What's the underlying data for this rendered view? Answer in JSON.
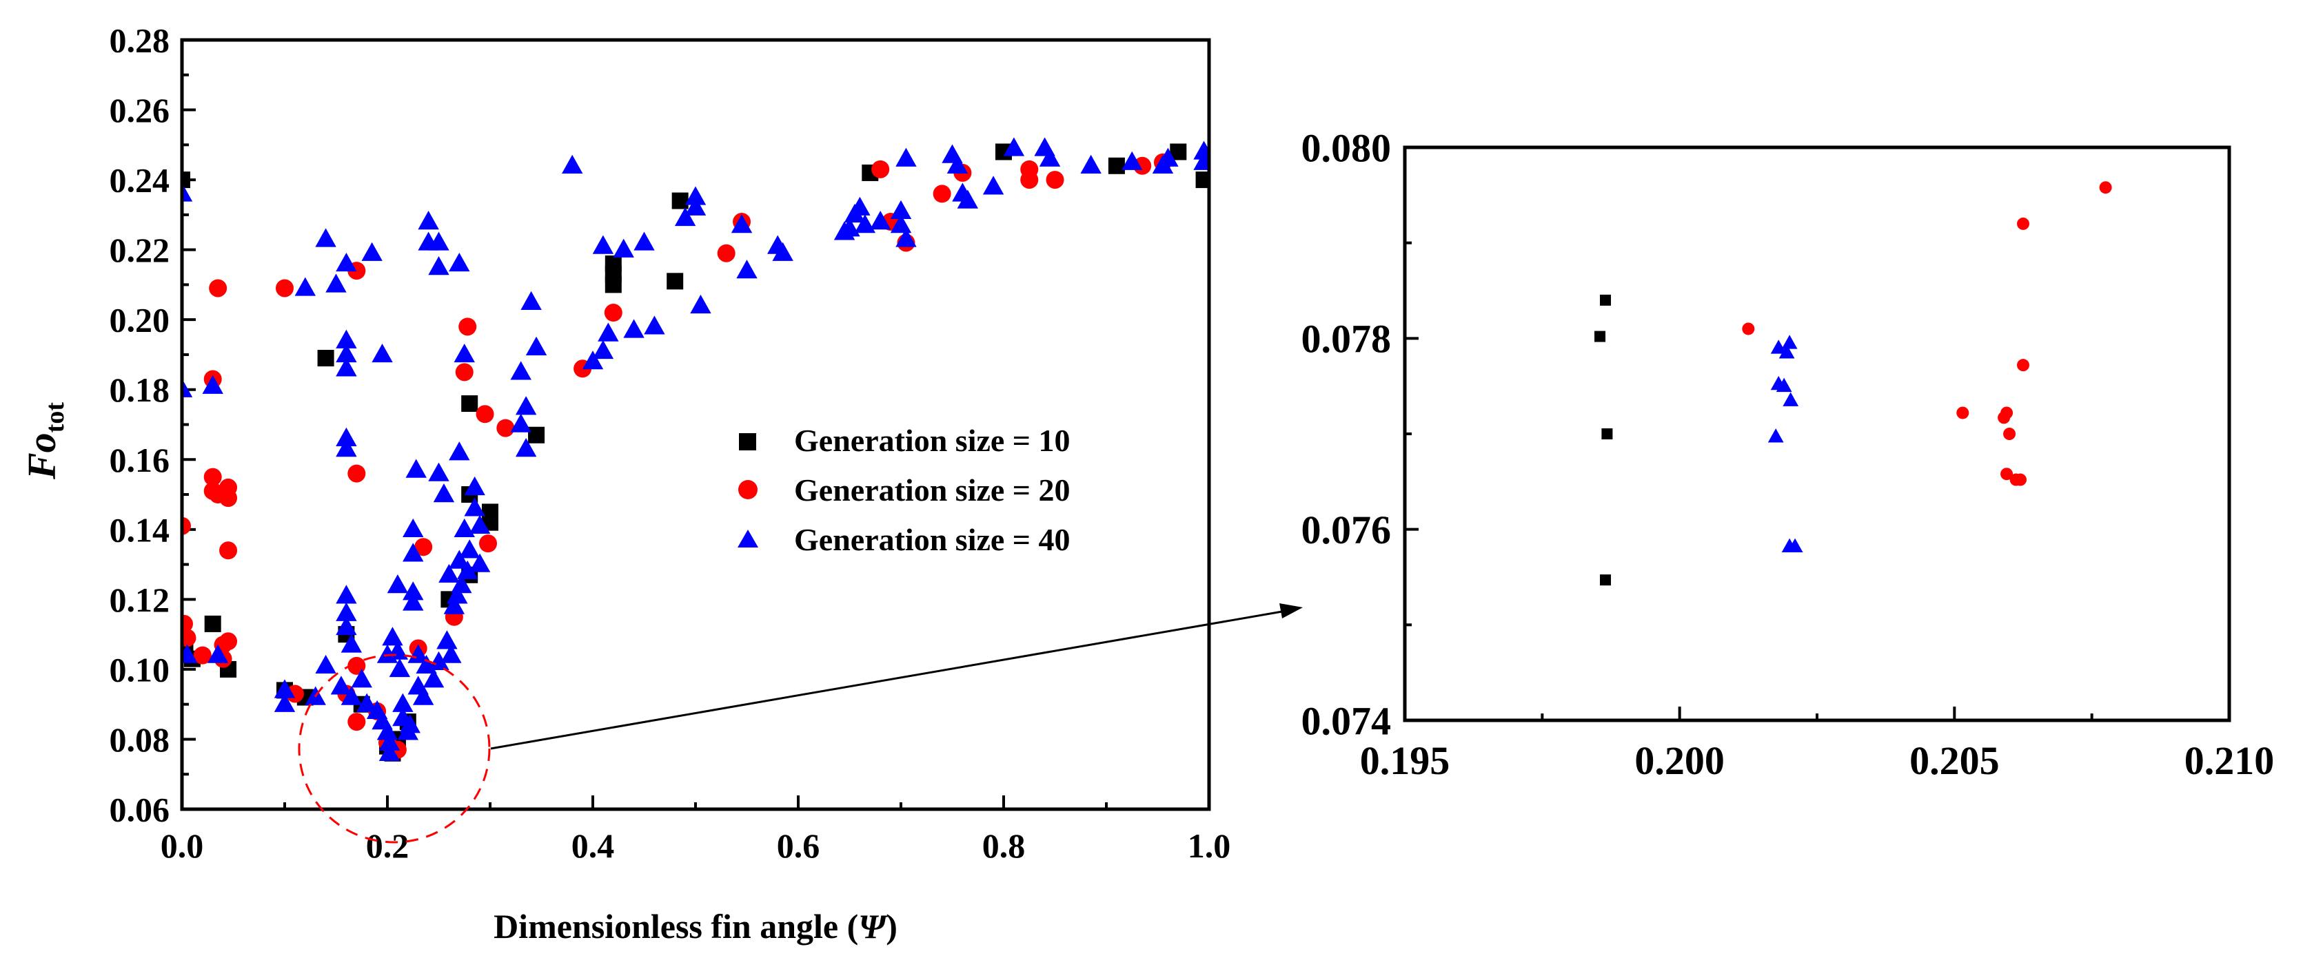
{
  "colors": {
    "series_10": "#000000",
    "series_20": "#ff0000",
    "series_40": "#0000ff",
    "axis": "#000000",
    "highlight_circle": "#ff0000",
    "arrow": "#000000"
  },
  "chart_data": [
    {
      "id": "main",
      "type": "scatter",
      "title": "",
      "xlabel": "Dimensionless fin angle (Ψ)",
      "xlabel_main": "Dimensionless fin angle (",
      "xlabel_symbol": "Ψ",
      "xlabel_close": ")",
      "ylabel": "Fo_tot",
      "ylabel_main": "Fo",
      "ylabel_sub": "tot",
      "xlim": [
        0.0,
        1.0
      ],
      "ylim": [
        0.06,
        0.28
      ],
      "xticks": [
        0.0,
        0.2,
        0.4,
        0.6,
        0.8,
        1.0
      ],
      "xtick_labels": [
        "0.0",
        "0.2",
        "0.4",
        "0.6",
        "0.8",
        "1.0"
      ],
      "yticks": [
        0.06,
        0.08,
        0.1,
        0.12,
        0.14,
        0.16,
        0.18,
        0.2,
        0.22,
        0.24,
        0.26,
        0.28
      ],
      "ytick_labels": [
        "0.06",
        "0.08",
        "0.10",
        "0.12",
        "0.14",
        "0.16",
        "0.18",
        "0.20",
        "0.22",
        "0.24",
        "0.26",
        "0.28"
      ],
      "legend_position": "center-right",
      "series": [
        {
          "name": "Generation size = 10",
          "marker": "square",
          "color": "#000000",
          "points": [
            [
              0.0,
              0.24
            ],
            [
              0.003,
              0.107
            ],
            [
              0.01,
              0.103
            ],
            [
              0.03,
              0.113
            ],
            [
              0.045,
              0.1
            ],
            [
              0.1,
              0.094
            ],
            [
              0.12,
              0.092
            ],
            [
              0.14,
              0.189
            ],
            [
              0.16,
              0.11
            ],
            [
              0.175,
              0.09
            ],
            [
              0.2,
              0.078
            ],
            [
              0.205,
              0.076
            ],
            [
              0.21,
              0.08
            ],
            [
              0.22,
              0.085
            ],
            [
              0.26,
              0.12
            ],
            [
              0.28,
              0.176
            ],
            [
              0.28,
              0.127
            ],
            [
              0.28,
              0.15
            ],
            [
              0.3,
              0.142
            ],
            [
              0.3,
              0.145
            ],
            [
              0.345,
              0.167
            ],
            [
              0.42,
              0.216
            ],
            [
              0.42,
              0.213
            ],
            [
              0.42,
              0.21
            ],
            [
              0.48,
              0.211
            ],
            [
              0.485,
              0.234
            ],
            [
              0.67,
              0.242
            ],
            [
              0.8,
              0.248
            ],
            [
              0.91,
              0.244
            ],
            [
              0.97,
              0.248
            ],
            [
              0.995,
              0.24
            ]
          ]
        },
        {
          "name": "Generation size = 20",
          "marker": "circle",
          "color": "#ff0000",
          "points": [
            [
              0.0,
              0.141
            ],
            [
              0.002,
              0.113
            ],
            [
              0.005,
              0.109
            ],
            [
              0.02,
              0.104
            ],
            [
              0.03,
              0.183
            ],
            [
              0.03,
              0.155
            ],
            [
              0.03,
              0.151
            ],
            [
              0.035,
              0.209
            ],
            [
              0.035,
              0.15
            ],
            [
              0.04,
              0.107
            ],
            [
              0.04,
              0.103
            ],
            [
              0.045,
              0.152
            ],
            [
              0.045,
              0.149
            ],
            [
              0.045,
              0.134
            ],
            [
              0.045,
              0.108
            ],
            [
              0.1,
              0.209
            ],
            [
              0.11,
              0.093
            ],
            [
              0.16,
              0.093
            ],
            [
              0.17,
              0.214
            ],
            [
              0.17,
              0.156
            ],
            [
              0.17,
              0.101
            ],
            [
              0.17,
              0.085
            ],
            [
              0.19,
              0.088
            ],
            [
              0.2,
              0.079
            ],
            [
              0.21,
              0.077
            ],
            [
              0.23,
              0.106
            ],
            [
              0.235,
              0.135
            ],
            [
              0.265,
              0.115
            ],
            [
              0.275,
              0.185
            ],
            [
              0.278,
              0.198
            ],
            [
              0.295,
              0.173
            ],
            [
              0.298,
              0.136
            ],
            [
              0.315,
              0.169
            ],
            [
              0.39,
              0.186
            ],
            [
              0.42,
              0.202
            ],
            [
              0.53,
              0.219
            ],
            [
              0.545,
              0.228
            ],
            [
              0.68,
              0.243
            ],
            [
              0.69,
              0.228
            ],
            [
              0.705,
              0.222
            ],
            [
              0.74,
              0.236
            ],
            [
              0.76,
              0.242
            ],
            [
              0.825,
              0.243
            ],
            [
              0.825,
              0.24
            ],
            [
              0.85,
              0.24
            ],
            [
              0.935,
              0.244
            ],
            [
              0.955,
              0.245
            ]
          ]
        },
        {
          "name": "Generation size = 40",
          "marker": "triangle",
          "color": "#0000ff",
          "points": [
            [
              0.0,
              0.236
            ],
            [
              0.0,
              0.18
            ],
            [
              0.005,
              0.104
            ],
            [
              0.03,
              0.181
            ],
            [
              0.035,
              0.104
            ],
            [
              0.1,
              0.094
            ],
            [
              0.1,
              0.09
            ],
            [
              0.12,
              0.209
            ],
            [
              0.13,
              0.092
            ],
            [
              0.14,
              0.223
            ],
            [
              0.14,
              0.101
            ],
            [
              0.15,
              0.21
            ],
            [
              0.155,
              0.095
            ],
            [
              0.16,
              0.216
            ],
            [
              0.16,
              0.194
            ],
            [
              0.16,
              0.19
            ],
            [
              0.16,
              0.186
            ],
            [
              0.16,
              0.166
            ],
            [
              0.16,
              0.163
            ],
            [
              0.16,
              0.121
            ],
            [
              0.16,
              0.116
            ],
            [
              0.16,
              0.112
            ],
            [
              0.165,
              0.107
            ],
            [
              0.165,
              0.092
            ],
            [
              0.175,
              0.097
            ],
            [
              0.18,
              0.09
            ],
            [
              0.185,
              0.219
            ],
            [
              0.19,
              0.088
            ],
            [
              0.195,
              0.19
            ],
            [
              0.195,
              0.085
            ],
            [
              0.2,
              0.082
            ],
            [
              0.202,
              0.079
            ],
            [
              0.202,
              0.076
            ],
            [
              0.2,
              0.104
            ],
            [
              0.205,
              0.109
            ],
            [
              0.21,
              0.124
            ],
            [
              0.21,
              0.105
            ],
            [
              0.212,
              0.1
            ],
            [
              0.215,
              0.09
            ],
            [
              0.215,
              0.086
            ],
            [
              0.22,
              0.082
            ],
            [
              0.222,
              0.084
            ],
            [
              0.225,
              0.14
            ],
            [
              0.225,
              0.133
            ],
            [
              0.225,
              0.122
            ],
            [
              0.225,
              0.119
            ],
            [
              0.228,
              0.157
            ],
            [
              0.23,
              0.104
            ],
            [
              0.23,
              0.095
            ],
            [
              0.235,
              0.092
            ],
            [
              0.238,
              0.101
            ],
            [
              0.24,
              0.228
            ],
            [
              0.24,
              0.222
            ],
            [
              0.245,
              0.097
            ],
            [
              0.25,
              0.215
            ],
            [
              0.25,
              0.222
            ],
            [
              0.25,
              0.156
            ],
            [
              0.25,
              0.102
            ],
            [
              0.255,
              0.15
            ],
            [
              0.258,
              0.108
            ],
            [
              0.26,
              0.127
            ],
            [
              0.262,
              0.104
            ],
            [
              0.265,
              0.118
            ],
            [
              0.268,
              0.121
            ],
            [
              0.27,
              0.216
            ],
            [
              0.27,
              0.162
            ],
            [
              0.27,
              0.131
            ],
            [
              0.272,
              0.124
            ],
            [
              0.275,
              0.19
            ],
            [
              0.275,
              0.14
            ],
            [
              0.278,
              0.128
            ],
            [
              0.28,
              0.134
            ],
            [
              0.285,
              0.152
            ],
            [
              0.285,
              0.146
            ],
            [
              0.29,
              0.13
            ],
            [
              0.29,
              0.141
            ],
            [
              0.33,
              0.185
            ],
            [
              0.33,
              0.17
            ],
            [
              0.335,
              0.175
            ],
            [
              0.335,
              0.163
            ],
            [
              0.34,
              0.205
            ],
            [
              0.345,
              0.192
            ],
            [
              0.38,
              0.244
            ],
            [
              0.4,
              0.188
            ],
            [
              0.41,
              0.191
            ],
            [
              0.41,
              0.221
            ],
            [
              0.415,
              0.196
            ],
            [
              0.43,
              0.22
            ],
            [
              0.44,
              0.197
            ],
            [
              0.45,
              0.222
            ],
            [
              0.46,
              0.198
            ],
            [
              0.49,
              0.229
            ],
            [
              0.5,
              0.235
            ],
            [
              0.5,
              0.232
            ],
            [
              0.505,
              0.204
            ],
            [
              0.545,
              0.227
            ],
            [
              0.55,
              0.214
            ],
            [
              0.58,
              0.221
            ],
            [
              0.585,
              0.219
            ],
            [
              0.645,
              0.225
            ],
            [
              0.65,
              0.226
            ],
            [
              0.655,
              0.23
            ],
            [
              0.66,
              0.232
            ],
            [
              0.665,
              0.227
            ],
            [
              0.68,
              0.228
            ],
            [
              0.7,
              0.231
            ],
            [
              0.7,
              0.227
            ],
            [
              0.705,
              0.246
            ],
            [
              0.705,
              0.223
            ],
            [
              0.75,
              0.247
            ],
            [
              0.755,
              0.244
            ],
            [
              0.76,
              0.236
            ],
            [
              0.765,
              0.234
            ],
            [
              0.79,
              0.238
            ],
            [
              0.81,
              0.249
            ],
            [
              0.84,
              0.249
            ],
            [
              0.845,
              0.246
            ],
            [
              0.885,
              0.244
            ],
            [
              0.925,
              0.245
            ],
            [
              0.955,
              0.244
            ],
            [
              0.96,
              0.246
            ],
            [
              0.995,
              0.248
            ],
            [
              0.995,
              0.245
            ]
          ]
        }
      ]
    },
    {
      "id": "inset",
      "type": "scatter",
      "title": "",
      "xlabel": "",
      "ylabel": "",
      "xlim": [
        0.195,
        0.21
      ],
      "ylim": [
        0.074,
        0.08
      ],
      "xticks": [
        0.195,
        0.2,
        0.205,
        0.21
      ],
      "xtick_labels": [
        "0.195",
        "0.200",
        "0.205",
        "0.210"
      ],
      "yticks": [
        0.074,
        0.076,
        0.078,
        0.08
      ],
      "ytick_labels": [
        "0.074",
        "0.076",
        "0.078",
        "0.080"
      ],
      "series": [
        {
          "name": "Generation size = 10",
          "marker": "square",
          "color": "#000000",
          "points": [
            [
              0.19865,
              0.0784
            ],
            [
              0.19855,
              0.07802
            ],
            [
              0.19868,
              0.077
            ],
            [
              0.19865,
              0.07547
            ]
          ]
        },
        {
          "name": "Generation size = 20",
          "marker": "circle",
          "color": "#ff0000",
          "points": [
            [
              0.20125,
              0.0781
            ],
            [
              0.20515,
              0.07722
            ],
            [
              0.20595,
              0.07722
            ],
            [
              0.2059,
              0.07717
            ],
            [
              0.206,
              0.077
            ],
            [
              0.20595,
              0.07658
            ],
            [
              0.20612,
              0.07652
            ],
            [
              0.2062,
              0.07652
            ],
            [
              0.20625,
              0.07772
            ],
            [
              0.20625,
              0.0792
            ],
            [
              0.20775,
              0.07958
            ]
          ]
        },
        {
          "name": "Generation size = 40",
          "marker": "triangle",
          "color": "#0000ff",
          "points": [
            [
              0.2018,
              0.0779
            ],
            [
              0.202,
              0.07795
            ],
            [
              0.20195,
              0.07785
            ],
            [
              0.2018,
              0.07752
            ],
            [
              0.2019,
              0.0775
            ],
            [
              0.20202,
              0.07735
            ],
            [
              0.20175,
              0.07697
            ],
            [
              0.202,
              0.07582
            ],
            [
              0.2021,
              0.07582
            ]
          ]
        }
      ]
    }
  ]
}
